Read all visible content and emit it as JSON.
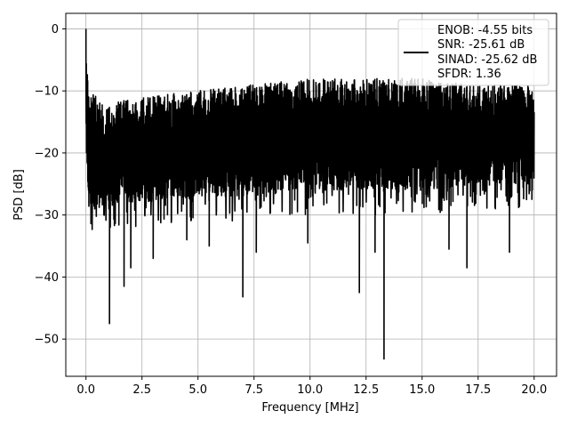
{
  "chart_data": {
    "type": "line",
    "title": "",
    "xlabel": "Frequency [MHz]",
    "ylabel": "PSD [dB]",
    "xlim": [
      -0.9,
      21.0
    ],
    "ylim": [
      -56,
      2.5
    ],
    "xticks": [
      0.0,
      2.5,
      5.0,
      7.5,
      10.0,
      12.5,
      15.0,
      17.5,
      20.0
    ],
    "xtick_labels": [
      "0.0",
      "2.5",
      "5.0",
      "7.5",
      "10.0",
      "12.5",
      "15.0",
      "17.5",
      "20.0"
    ],
    "yticks": [
      0,
      -10,
      -20,
      -30,
      -40,
      -50
    ],
    "ytick_labels": [
      "0",
      "−10",
      "−20",
      "−30",
      "−40",
      "−50"
    ],
    "grid": true,
    "legend_position": "top-right",
    "legend_lines": [
      "ENOB: -4.55 bits",
      "SNR: -25.61 dB",
      "SINAD: -25.62 dB",
      "SFDR: 1.36"
    ],
    "series": [
      {
        "color": "#000000",
        "envelope": {
          "x": [
            0.0,
            0.1,
            0.5,
            1.0,
            2.5,
            5.0,
            7.5,
            10.0,
            12.5,
            15.0,
            17.5,
            20.0
          ],
          "upper": [
            0.0,
            -10,
            -11,
            -12,
            -11,
            -10,
            -9,
            -8,
            -8,
            -8,
            -9,
            -9
          ],
          "lower": [
            -18,
            -31,
            -29,
            -28,
            -28,
            -27,
            -27,
            -26,
            -26,
            -26,
            -25,
            -25
          ]
        },
        "dips": [
          {
            "x": 1.05,
            "y": -47.5
          },
          {
            "x": 1.7,
            "y": -41.5
          },
          {
            "x": 2.0,
            "y": -38.5
          },
          {
            "x": 3.0,
            "y": -37.0
          },
          {
            "x": 4.5,
            "y": -34.0
          },
          {
            "x": 5.5,
            "y": -35.0
          },
          {
            "x": 7.0,
            "y": -43.2
          },
          {
            "x": 7.6,
            "y": -36.0
          },
          {
            "x": 9.9,
            "y": -34.5
          },
          {
            "x": 12.2,
            "y": -42.5
          },
          {
            "x": 12.9,
            "y": -36.0
          },
          {
            "x": 13.3,
            "y": -53.2
          },
          {
            "x": 16.2,
            "y": -35.5
          },
          {
            "x": 17.0,
            "y": -38.5
          },
          {
            "x": 18.9,
            "y": -36.0
          }
        ],
        "peak": {
          "x": 0.0,
          "y": 0.0
        }
      }
    ]
  }
}
